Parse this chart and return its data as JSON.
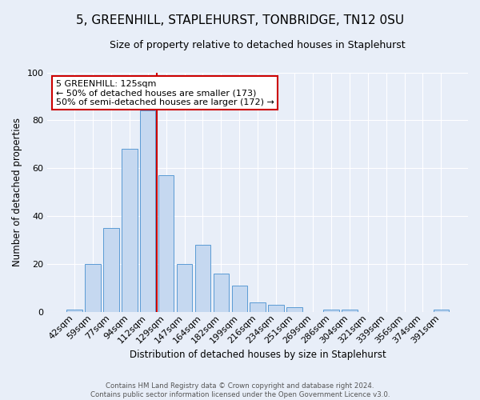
{
  "title": "5, GREENHILL, STAPLEHURST, TONBRIDGE, TN12 0SU",
  "subtitle": "Size of property relative to detached houses in Staplehurst",
  "xlabel": "Distribution of detached houses by size in Staplehurst",
  "ylabel": "Number of detached properties",
  "categories": [
    "42sqm",
    "59sqm",
    "77sqm",
    "94sqm",
    "112sqm",
    "129sqm",
    "147sqm",
    "164sqm",
    "182sqm",
    "199sqm",
    "216sqm",
    "234sqm",
    "251sqm",
    "269sqm",
    "286sqm",
    "304sqm",
    "321sqm",
    "339sqm",
    "356sqm",
    "374sqm",
    "391sqm"
  ],
  "values": [
    1,
    20,
    35,
    68,
    84,
    57,
    20,
    28,
    16,
    11,
    4,
    3,
    2,
    0,
    1,
    1,
    0,
    0,
    0,
    0,
    1
  ],
  "bar_color": "#c5d8f0",
  "bar_edge_color": "#5b9bd5",
  "vline_x": 4.5,
  "vline_color": "#cc0000",
  "annotation_text": "5 GREENHILL: 125sqm\n← 50% of detached houses are smaller (173)\n50% of semi-detached houses are larger (172) →",
  "annotation_box_color": "#ffffff",
  "annotation_box_edge": "#cc0000",
  "background_color": "#e8eef8",
  "ylim": [
    0,
    100
  ],
  "footer": "Contains HM Land Registry data © Crown copyright and database right 2024.\nContains public sector information licensed under the Open Government Licence v3.0.",
  "title_fontsize": 11,
  "subtitle_fontsize": 9,
  "ylabel_text": "Number of detached properties"
}
